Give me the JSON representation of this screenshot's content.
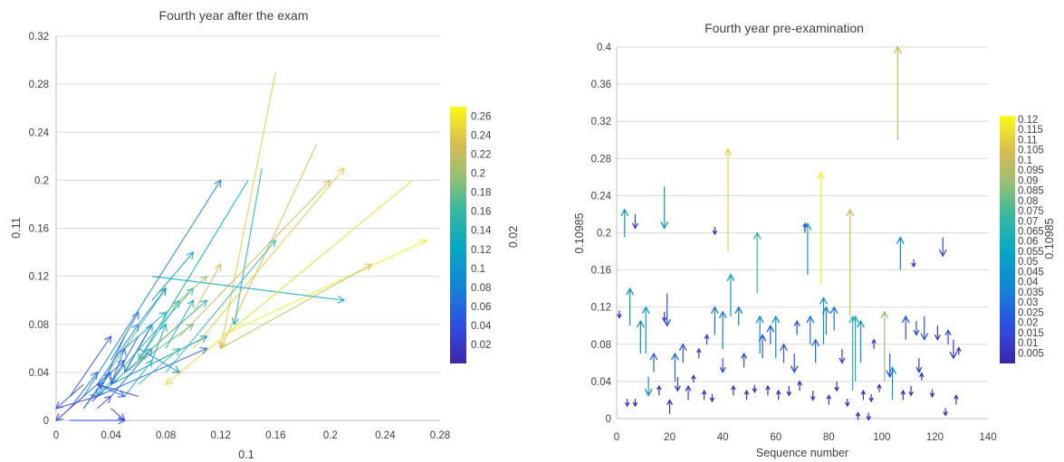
{
  "chart_data": [
    {
      "type": "quiver",
      "title": "Fourth year after the exam",
      "xlabel": "0.1",
      "ylabel": "0.11",
      "xlim": [
        0,
        0.28
      ],
      "ylim": [
        0,
        0.32
      ],
      "xticks": [
        "0",
        "0.04",
        "0.08",
        "0.12",
        "0.16",
        "0.2",
        "0.24",
        "0.28"
      ],
      "yticks": [
        "0",
        "0.04",
        "0.08",
        "0.12",
        "0.16",
        "0.2",
        "0.24",
        "0.28",
        "0.32"
      ],
      "grid": "horizontal",
      "colorbar": {
        "label": "0.02",
        "range": [
          0,
          0.27
        ],
        "ticks": [
          "0.02",
          "0.04",
          "0.06",
          "0.08",
          "0.1",
          "0.12",
          "0.14",
          "0.16",
          "0.18",
          "0.2",
          "0.22",
          "0.24",
          "0.26"
        ]
      },
      "arrows": [
        {
          "x0": 0.16,
          "y0": 0.29,
          "x1": 0.12,
          "y1": 0.06,
          "c": 0.24
        },
        {
          "x0": 0.19,
          "y0": 0.23,
          "x1": 0.12,
          "y1": 0.06,
          "c": 0.23
        },
        {
          "x0": 0.15,
          "y0": 0.21,
          "x1": 0.13,
          "y1": 0.08,
          "c": 0.14
        },
        {
          "x0": 0.14,
          "y0": 0.2,
          "x1": 0.06,
          "y1": 0.05,
          "c": 0.12
        },
        {
          "x0": 0.02,
          "y0": 0.02,
          "x1": 0.12,
          "y1": 0.2,
          "c": 0.08
        },
        {
          "x0": 0.09,
          "y0": 0.07,
          "x1": 0.2,
          "y1": 0.2,
          "c": 0.22
        },
        {
          "x0": 0.1,
          "y0": 0.06,
          "x1": 0.21,
          "y1": 0.21,
          "c": 0.24
        },
        {
          "x0": 0.12,
          "y0": 0.07,
          "x1": 0.27,
          "y1": 0.15,
          "c": 0.26
        },
        {
          "x0": 0.12,
          "y0": 0.06,
          "x1": 0.23,
          "y1": 0.13,
          "c": 0.22
        },
        {
          "x0": 0.07,
          "y0": 0.12,
          "x1": 0.21,
          "y1": 0.1,
          "c": 0.12
        },
        {
          "x0": 0.26,
          "y0": 0.2,
          "x1": 0.08,
          "y1": 0.03,
          "c": 0.25
        },
        {
          "x0": 0.08,
          "y0": 0.04,
          "x1": 0.16,
          "y1": 0.15,
          "c": 0.16
        },
        {
          "x0": 0.03,
          "y0": 0.02,
          "x1": 0.1,
          "y1": 0.11,
          "c": 0.15
        },
        {
          "x0": 0.02,
          "y0": 0.01,
          "x1": 0.08,
          "y1": 0.11,
          "c": 0.17
        },
        {
          "x0": 0.03,
          "y0": 0.02,
          "x1": 0.11,
          "y1": 0.1,
          "c": 0.14
        },
        {
          "x0": 0.04,
          "y0": 0.03,
          "x1": 0.11,
          "y1": 0.07,
          "c": 0.1
        },
        {
          "x0": 0.03,
          "y0": 0.02,
          "x1": 0.11,
          "y1": 0.06,
          "c": 0.06
        },
        {
          "x0": 0.01,
          "y0": 0.02,
          "x1": 0.04,
          "y1": 0.07,
          "c": 0.04
        },
        {
          "x0": 0.0,
          "y0": 0.01,
          "x1": 0.03,
          "y1": 0.02,
          "c": 0.03
        },
        {
          "x0": 0.01,
          "y0": 0.0,
          "x1": 0.05,
          "y1": 0.0,
          "c": 0.04
        },
        {
          "x0": 0.04,
          "y0": 0.05,
          "x1": 0.06,
          "y1": 0.09,
          "c": 0.07
        },
        {
          "x0": 0.05,
          "y0": 0.04,
          "x1": 0.07,
          "y1": 0.08,
          "c": 0.09
        },
        {
          "x0": 0.02,
          "y0": 0.02,
          "x1": 0.05,
          "y1": 0.05,
          "c": 0.05
        },
        {
          "x0": 0.06,
          "y0": 0.07,
          "x1": 0.04,
          "y1": 0.03,
          "c": 0.05
        },
        {
          "x0": 0.07,
          "y0": 0.08,
          "x1": 0.05,
          "y1": 0.04,
          "c": 0.06
        },
        {
          "x0": 0.03,
          "y0": 0.03,
          "x1": 0.05,
          "y1": 0.02,
          "c": 0.05
        },
        {
          "x0": 0.01,
          "y0": 0.01,
          "x1": 0.03,
          "y1": 0.04,
          "c": 0.06
        },
        {
          "x0": 0.05,
          "y0": 0.06,
          "x1": 0.08,
          "y1": 0.09,
          "c": 0.13
        },
        {
          "x0": 0.06,
          "y0": 0.05,
          "x1": 0.09,
          "y1": 0.1,
          "c": 0.15
        },
        {
          "x0": 0.05,
          "y0": 0.04,
          "x1": 0.1,
          "y1": 0.08,
          "c": 0.18
        },
        {
          "x0": 0.06,
          "y0": 0.06,
          "x1": 0.09,
          "y1": 0.04,
          "c": 0.1
        },
        {
          "x0": 0.04,
          "y0": 0.02,
          "x1": 0.07,
          "y1": 0.06,
          "c": 0.07
        },
        {
          "x0": 0.03,
          "y0": 0.03,
          "x1": 0.06,
          "y1": 0.08,
          "c": 0.08
        },
        {
          "x0": 0.02,
          "y0": 0.01,
          "x1": 0.04,
          "y1": 0.04,
          "c": 0.05
        },
        {
          "x0": 0.04,
          "y0": 0.03,
          "x1": 0.05,
          "y1": 0.06,
          "c": 0.06
        },
        {
          "x0": 0.07,
          "y0": 0.05,
          "x1": 0.08,
          "y1": 0.08,
          "c": 0.12
        },
        {
          "x0": 0.06,
          "y0": 0.03,
          "x1": 0.09,
          "y1": 0.06,
          "c": 0.16
        },
        {
          "x0": 0.05,
          "y0": 0.02,
          "x1": 0.07,
          "y1": 0.05,
          "c": 0.14
        },
        {
          "x0": 0.03,
          "y0": 0.01,
          "x1": 0.04,
          "y1": 0.02,
          "c": 0.03
        },
        {
          "x0": 0.02,
          "y0": 0.03,
          "x1": 0.0,
          "y1": 0.01,
          "c": 0.04
        },
        {
          "x0": 0.04,
          "y0": 0.01,
          "x1": 0.05,
          "y1": 0.0,
          "c": 0.02
        },
        {
          "x0": 0.08,
          "y0": 0.09,
          "x1": 0.11,
          "y1": 0.12,
          "c": 0.2
        },
        {
          "x0": 0.09,
          "y0": 0.08,
          "x1": 0.06,
          "y1": 0.05,
          "c": 0.19
        },
        {
          "x0": 0.1,
          "y0": 0.09,
          "x1": 0.12,
          "y1": 0.13,
          "c": 0.22
        },
        {
          "x0": 0.07,
          "y0": 0.1,
          "x1": 0.1,
          "y1": 0.14,
          "c": 0.11
        },
        {
          "x0": 0.08,
          "y0": 0.06,
          "x1": 0.1,
          "y1": 0.1,
          "c": 0.13
        },
        {
          "x0": 0.06,
          "y0": 0.08,
          "x1": 0.08,
          "y1": 0.11,
          "c": 0.1
        },
        {
          "x0": 0.05,
          "y0": 0.07,
          "x1": 0.03,
          "y1": 0.02,
          "c": 0.07
        },
        {
          "x0": 0.02,
          "y0": 0.02,
          "x1": 0.0,
          "y1": 0.0,
          "c": 0.02
        },
        {
          "x0": 0.06,
          "y0": 0.02,
          "x1": 0.03,
          "y1": 0.03,
          "c": 0.03
        }
      ]
    },
    {
      "type": "quiver",
      "title": "Fourth year pre-examination",
      "xlabel": "Sequence number",
      "ylabel": "0.10985",
      "xlim": [
        0,
        140
      ],
      "ylim": [
        0,
        0.4
      ],
      "xticks": [
        "0",
        "20",
        "40",
        "60",
        "80",
        "100",
        "120",
        "140"
      ],
      "yticks": [
        "0",
        "0.04",
        "0.08",
        "0.12",
        "0.16",
        "0.2",
        "0.24",
        "0.28",
        "0.32",
        "0.36",
        "0.4"
      ],
      "grid": "horizontal",
      "colorbar": {
        "label": "0.10985",
        "range": [
          0,
          0.122
        ],
        "ticks": [
          "0.005",
          "0.01",
          "0.015",
          "0.02",
          "0.025",
          "0.03",
          "0.035",
          "0.04",
          "0.045",
          "0.05",
          "0.055",
          "0.06",
          "0.065",
          "0.07",
          "0.075",
          "0.08",
          "0.085",
          "0.09",
          "0.095",
          "0.1",
          "0.105",
          "0.11",
          "0.115",
          "0.12"
        ]
      },
      "arrows": [
        {
          "x": 106,
          "y0": 0.3,
          "y1": 0.4,
          "c": 0.1
        },
        {
          "x": 42,
          "y0": 0.18,
          "y1": 0.29,
          "c": 0.11
        },
        {
          "x": 77,
          "y0": 0.145,
          "y1": 0.265,
          "c": 0.12
        },
        {
          "x": 88,
          "y0": 0.11,
          "y1": 0.225,
          "c": 0.1
        },
        {
          "x": 53,
          "y0": 0.135,
          "y1": 0.2,
          "c": 0.07
        },
        {
          "x": 3,
          "y0": 0.195,
          "y1": 0.225,
          "c": 0.045
        },
        {
          "x": 7,
          "y0": 0.22,
          "y1": 0.205,
          "c": 0.01
        },
        {
          "x": 18,
          "y0": 0.25,
          "y1": 0.205,
          "c": 0.045
        },
        {
          "x": 37,
          "y0": 0.205,
          "y1": 0.2,
          "c": 0.005
        },
        {
          "x": 72,
          "y0": 0.155,
          "y1": 0.21,
          "c": 0.05
        },
        {
          "x": 71,
          "y0": 0.2,
          "y1": 0.21,
          "c": 0.015
        },
        {
          "x": 107,
          "y0": 0.16,
          "y1": 0.195,
          "c": 0.04
        },
        {
          "x": 112,
          "y0": 0.17,
          "y1": 0.165,
          "c": 0.01
        },
        {
          "x": 123,
          "y0": 0.195,
          "y1": 0.175,
          "c": 0.015
        },
        {
          "x": 43,
          "y0": 0.11,
          "y1": 0.155,
          "c": 0.05
        },
        {
          "x": 5,
          "y0": 0.1,
          "y1": 0.14,
          "c": 0.045
        },
        {
          "x": 1,
          "y0": 0.115,
          "y1": 0.11,
          "c": 0.005
        },
        {
          "x": 9,
          "y0": 0.07,
          "y1": 0.105,
          "c": 0.04
        },
        {
          "x": 11,
          "y0": 0.07,
          "y1": 0.12,
          "c": 0.045
        },
        {
          "x": 19,
          "y0": 0.135,
          "y1": 0.1,
          "c": 0.02
        },
        {
          "x": 18,
          "y0": 0.115,
          "y1": 0.105,
          "c": 0.01
        },
        {
          "x": 37,
          "y0": 0.09,
          "y1": 0.12,
          "c": 0.03
        },
        {
          "x": 40,
          "y0": 0.075,
          "y1": 0.115,
          "c": 0.035
        },
        {
          "x": 46,
          "y0": 0.1,
          "y1": 0.12,
          "c": 0.03
        },
        {
          "x": 54,
          "y0": 0.07,
          "y1": 0.11,
          "c": 0.04
        },
        {
          "x": 58,
          "y0": 0.08,
          "y1": 0.1,
          "c": 0.025
        },
        {
          "x": 60,
          "y0": 0.065,
          "y1": 0.11,
          "c": 0.04
        },
        {
          "x": 68,
          "y0": 0.09,
          "y1": 0.105,
          "c": 0.02
        },
        {
          "x": 73,
          "y0": 0.08,
          "y1": 0.11,
          "c": 0.03
        },
        {
          "x": 78,
          "y0": 0.08,
          "y1": 0.13,
          "c": 0.045
        },
        {
          "x": 79,
          "y0": 0.09,
          "y1": 0.12,
          "c": 0.035
        },
        {
          "x": 82,
          "y0": 0.095,
          "y1": 0.12,
          "c": 0.03
        },
        {
          "x": 89,
          "y0": 0.03,
          "y1": 0.11,
          "c": 0.07
        },
        {
          "x": 90,
          "y0": 0.04,
          "y1": 0.11,
          "c": 0.065
        },
        {
          "x": 92,
          "y0": 0.06,
          "y1": 0.105,
          "c": 0.04
        },
        {
          "x": 101,
          "y0": 0.04,
          "y1": 0.115,
          "c": 0.09
        },
        {
          "x": 104,
          "y0": 0.02,
          "y1": 0.055,
          "c": 0.05
        },
        {
          "x": 109,
          "y0": 0.085,
          "y1": 0.11,
          "c": 0.02
        },
        {
          "x": 113,
          "y0": 0.105,
          "y1": 0.09,
          "c": 0.015
        },
        {
          "x": 116,
          "y0": 0.11,
          "y1": 0.085,
          "c": 0.02
        },
        {
          "x": 121,
          "y0": 0.1,
          "y1": 0.085,
          "c": 0.01
        },
        {
          "x": 125,
          "y0": 0.08,
          "y1": 0.095,
          "c": 0.015
        },
        {
          "x": 12,
          "y0": 0.045,
          "y1": 0.025,
          "c": 0.04
        },
        {
          "x": 14,
          "y0": 0.05,
          "y1": 0.07,
          "c": 0.025
        },
        {
          "x": 22,
          "y0": 0.04,
          "y1": 0.07,
          "c": 0.03
        },
        {
          "x": 25,
          "y0": 0.06,
          "y1": 0.08,
          "c": 0.02
        },
        {
          "x": 31,
          "y0": 0.065,
          "y1": 0.075,
          "c": 0.01
        },
        {
          "x": 34,
          "y0": 0.08,
          "y1": 0.09,
          "c": 0.01
        },
        {
          "x": 40,
          "y0": 0.065,
          "y1": 0.05,
          "c": 0.015
        },
        {
          "x": 48,
          "y0": 0.055,
          "y1": 0.07,
          "c": 0.015
        },
        {
          "x": 55,
          "y0": 0.065,
          "y1": 0.09,
          "c": 0.02
        },
        {
          "x": 63,
          "y0": 0.06,
          "y1": 0.08,
          "c": 0.02
        },
        {
          "x": 67,
          "y0": 0.07,
          "y1": 0.05,
          "c": 0.015
        },
        {
          "x": 75,
          "y0": 0.06,
          "y1": 0.085,
          "c": 0.025
        },
        {
          "x": 85,
          "y0": 0.075,
          "y1": 0.06,
          "c": 0.01
        },
        {
          "x": 97,
          "y0": 0.075,
          "y1": 0.085,
          "c": 0.01
        },
        {
          "x": 103,
          "y0": 0.07,
          "y1": 0.045,
          "c": 0.02
        },
        {
          "x": 114,
          "y0": 0.065,
          "y1": 0.05,
          "c": 0.01
        },
        {
          "x": 127,
          "y0": 0.085,
          "y1": 0.065,
          "c": 0.01
        },
        {
          "x": 4,
          "y0": 0.02,
          "y1": 0.015,
          "c": 0.005
        },
        {
          "x": 7,
          "y0": 0.02,
          "y1": 0.015,
          "c": 0.005
        },
        {
          "x": 16,
          "y0": 0.025,
          "y1": 0.035,
          "c": 0.005
        },
        {
          "x": 20,
          "y0": 0.005,
          "y1": 0.02,
          "c": 0.005
        },
        {
          "x": 23,
          "y0": 0.045,
          "y1": 0.03,
          "c": 0.01
        },
        {
          "x": 27,
          "y0": 0.02,
          "y1": 0.035,
          "c": 0.01
        },
        {
          "x": 29,
          "y0": 0.04,
          "y1": 0.045,
          "c": 0.005
        },
        {
          "x": 33,
          "y0": 0.02,
          "y1": 0.03,
          "c": 0.005
        },
        {
          "x": 36,
          "y0": 0.025,
          "y1": 0.02,
          "c": 0.005
        },
        {
          "x": 44,
          "y0": 0.025,
          "y1": 0.035,
          "c": 0.005
        },
        {
          "x": 49,
          "y0": 0.02,
          "y1": 0.03,
          "c": 0.005
        },
        {
          "x": 52,
          "y0": 0.035,
          "y1": 0.03,
          "c": 0.005
        },
        {
          "x": 57,
          "y0": 0.025,
          "y1": 0.035,
          "c": 0.005
        },
        {
          "x": 61,
          "y0": 0.02,
          "y1": 0.03,
          "c": 0.005
        },
        {
          "x": 65,
          "y0": 0.035,
          "y1": 0.025,
          "c": 0.005
        },
        {
          "x": 69,
          "y0": 0.03,
          "y1": 0.04,
          "c": 0.005
        },
        {
          "x": 74,
          "y0": 0.03,
          "y1": 0.02,
          "c": 0.005
        },
        {
          "x": 80,
          "y0": 0.015,
          "y1": 0.025,
          "c": 0.005
        },
        {
          "x": 83,
          "y0": 0.04,
          "y1": 0.03,
          "c": 0.005
        },
        {
          "x": 87,
          "y0": 0.02,
          "y1": 0.015,
          "c": 0.005
        },
        {
          "x": 93,
          "y0": 0.02,
          "y1": 0.03,
          "c": 0.005
        },
        {
          "x": 96,
          "y0": 0.025,
          "y1": 0.02,
          "c": 0.005
        },
        {
          "x": 99,
          "y0": 0.03,
          "y1": 0.035,
          "c": 0.005
        },
        {
          "x": 108,
          "y0": 0.02,
          "y1": 0.03,
          "c": 0.005
        },
        {
          "x": 111,
          "y0": 0.035,
          "y1": 0.025,
          "c": 0.005
        },
        {
          "x": 115,
          "y0": 0.045,
          "y1": 0.045,
          "c": 0.005
        },
        {
          "x": 119,
          "y0": 0.03,
          "y1": 0.025,
          "c": 0.005
        },
        {
          "x": 124,
          "y0": 0.01,
          "y1": 0.005,
          "c": 0.005
        },
        {
          "x": 128,
          "y0": 0.015,
          "y1": 0.025,
          "c": 0.005
        },
        {
          "x": 129,
          "y0": 0.07,
          "y1": 0.075,
          "c": 0.005
        },
        {
          "x": 95,
          "y0": 0.005,
          "y1": 0.0,
          "c": 0.005
        },
        {
          "x": 91,
          "y0": 0.0,
          "y1": 0.005,
          "c": 0.005
        }
      ]
    }
  ]
}
